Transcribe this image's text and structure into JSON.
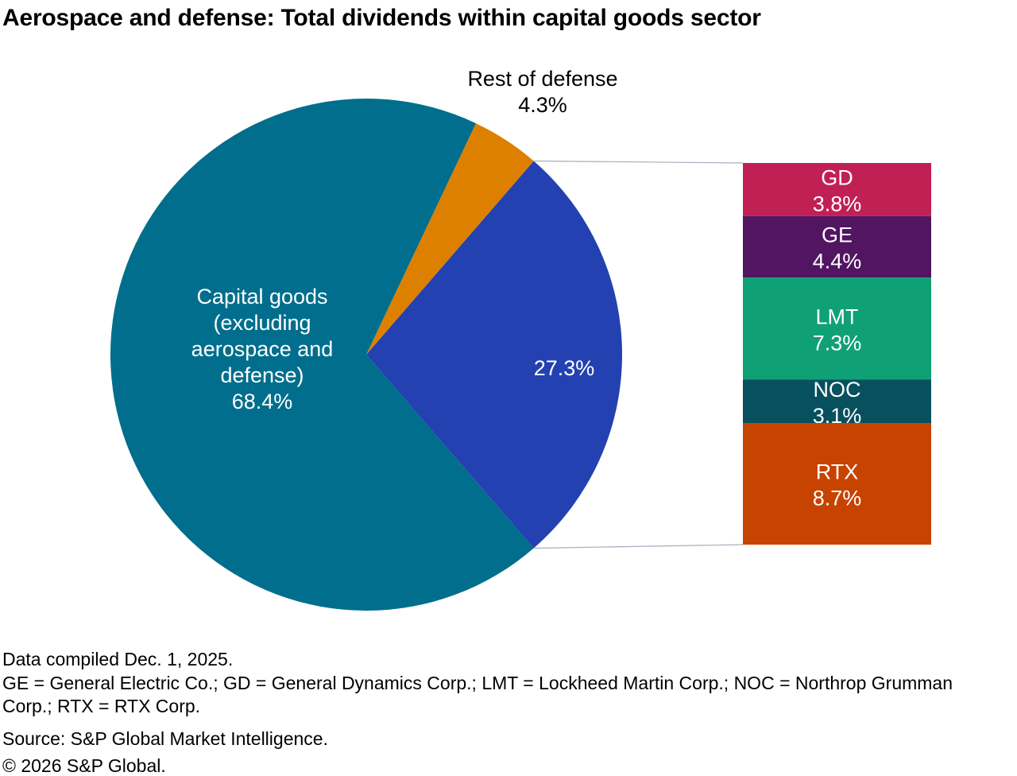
{
  "title": "Aerospace and defense: Total dividends within capital goods sector",
  "chart_data": {
    "type": "pie",
    "title": "Aerospace and defense: Total dividends within capital goods sector",
    "legend_position": "none",
    "slices": [
      {
        "id": "aerospace-defense",
        "name": "Aerospace and defense",
        "value": 27.3,
        "label_lines": [
          "27.3%"
        ],
        "color": "#2341B0",
        "label_color": "#ffffff"
      },
      {
        "id": "rest-of-defense",
        "name": "Rest of defense",
        "value": 4.3,
        "label_lines": [
          "Rest of defense",
          "4.3%"
        ],
        "color": "#DD8000",
        "label_color": "#000000"
      },
      {
        "id": "capital-goods",
        "name": "Capital goods (excluding aerospace and defense)",
        "value": 68.4,
        "label_lines": [
          "Capital goods",
          "(excluding",
          "aerospace and",
          "defense)",
          "68.4%"
        ],
        "color": "#006E8C",
        "label_color": "#ffffff"
      }
    ],
    "breakout_bar": {
      "description": "Breakout of aerospace and defense 27.3% slice",
      "segments": [
        {
          "ticker": "GD",
          "pct_label": "3.8%",
          "value": 3.8,
          "color": "#C12055"
        },
        {
          "ticker": "GE",
          "pct_label": "4.4%",
          "value": 4.4,
          "color": "#511562"
        },
        {
          "ticker": "LMT",
          "pct_label": "7.3%",
          "value": 7.3,
          "color": "#0FA076"
        },
        {
          "ticker": "NOC",
          "pct_label": "3.1%",
          "value": 3.1,
          "color": "#07505E"
        },
        {
          "ticker": "RTX",
          "pct_label": "8.7%",
          "value": 8.7,
          "color": "#C74300"
        }
      ],
      "label_color": "#ffffff"
    },
    "connector_color": "#A3AEBD"
  },
  "footnotes": {
    "compiled": "Data compiled Dec. 1, 2025.",
    "abbreviations": "GE = General Electric Co.; GD = General Dynamics Corp.; LMT = Lockheed Martin Corp.; NOC = Northrop Grumman Corp.; RTX = RTX Corp.",
    "source": "Source: S&P Global Market Intelligence.",
    "copyright": "© 2026 S&P Global."
  }
}
